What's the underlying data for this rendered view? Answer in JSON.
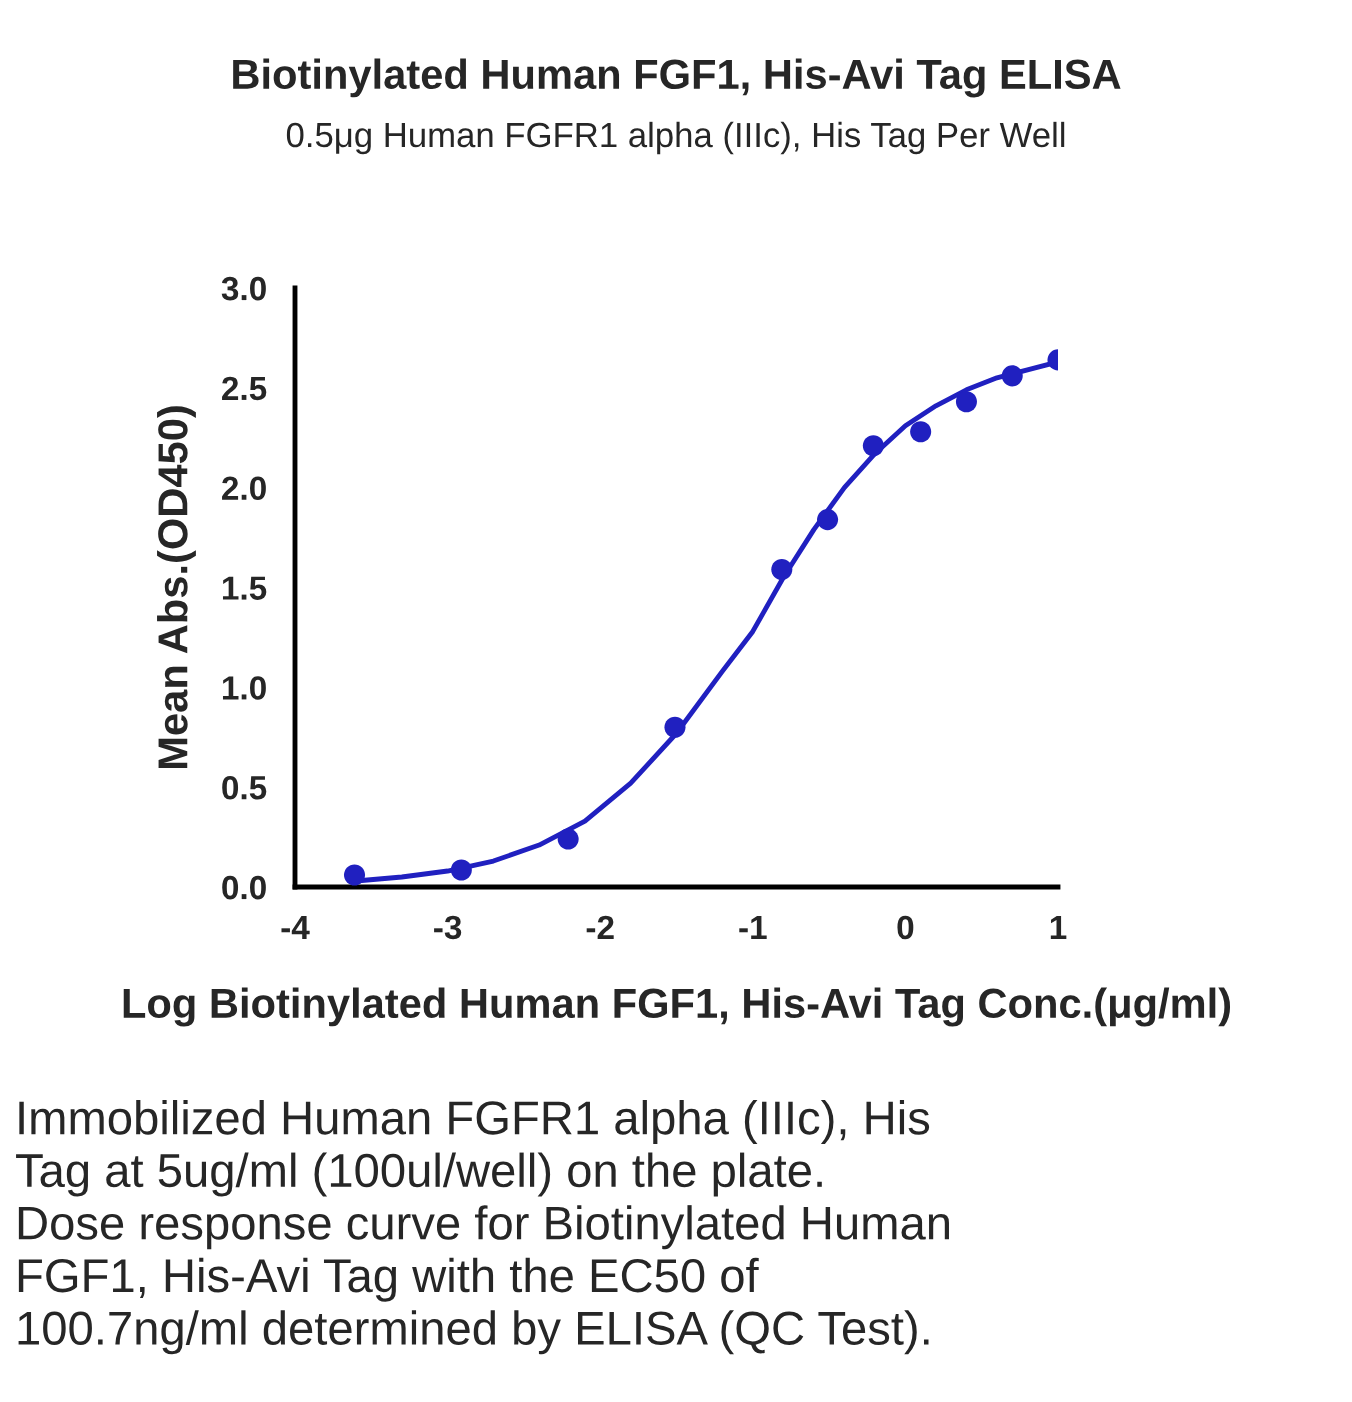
{
  "chart_data": {
    "type": "scatter",
    "title": "Biotinylated Human FGF1, His-Avi Tag ELISA",
    "subtitle": "0.5μg Human FGFR1 alpha (IIIc), His Tag Per Well",
    "xlabel": "Log Biotinylated Human FGF1, His-Avi Tag Conc.(μg/ml)",
    "ylabel": "Mean Abs.(OD450)",
    "series": [
      {
        "color": "#2020c0",
        "marker": "circle",
        "x": [
          -3.61,
          -2.91,
          -2.21,
          -1.51,
          -0.81,
          -0.51,
          -0.21,
          0.1,
          0.4,
          0.7,
          1.0
        ],
        "values": [
          0.06,
          0.085,
          0.24,
          0.8,
          1.59,
          1.84,
          2.21,
          2.28,
          2.43,
          2.56,
          2.64
        ]
      },
      {
        "type": "line",
        "color": "#2020c0",
        "marker": "none",
        "line_style": "solid",
        "x": [
          -3.6,
          -3.3,
          -3.0,
          -2.7,
          -2.4,
          -2.1,
          -1.8,
          -1.5,
          -1.2,
          -1.0,
          -0.8,
          -0.6,
          -0.4,
          -0.2,
          0.0,
          0.2,
          0.4,
          0.6,
          0.8,
          1.0
        ],
        "values": [
          0.03,
          0.05,
          0.08,
          0.13,
          0.21,
          0.33,
          0.52,
          0.77,
          1.08,
          1.28,
          1.55,
          1.79,
          2.0,
          2.17,
          2.31,
          2.41,
          2.49,
          2.55,
          2.59,
          2.63
        ]
      }
    ],
    "xlim": [
      -4,
      1
    ],
    "xticks": [
      -4,
      -3,
      -2,
      -1,
      0,
      1
    ],
    "ylim": [
      0,
      3.0
    ],
    "yticks": [
      {
        "value": 0,
        "label": "0.0"
      },
      {
        "value": 0.5,
        "label": "0.5"
      },
      {
        "value": 1.0,
        "label": "1.0"
      },
      {
        "value": 1.5,
        "label": "1.5"
      },
      {
        "value": 2.0,
        "label": "2.0"
      },
      {
        "value": 2.5,
        "label": "2.5"
      },
      {
        "value": 3.0,
        "label": "3.0"
      }
    ],
    "grid": false,
    "legend": false,
    "annotations": [
      "Immobilized Human FGFR1 alpha (IIIc), His\nTag at 5ug/ml (100ul/well) on the plate.\nDose response curve for Biotinylated Human\nFGF1, His-Avi Tag with the EC50 of\n100.7ng/ml determined by ELISA (QC Test)."
    ]
  }
}
